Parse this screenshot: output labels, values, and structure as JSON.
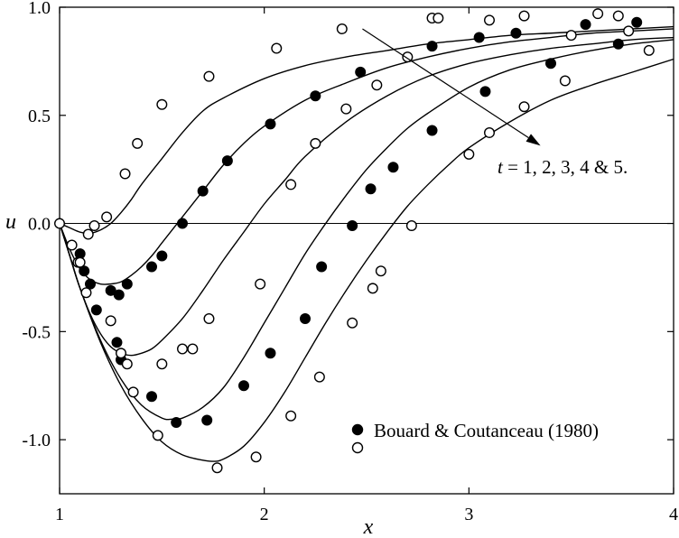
{
  "chart_data": {
    "type": "line",
    "xlabel": "x",
    "ylabel": "u",
    "xlim": [
      1,
      4
    ],
    "ylim": [
      -1.25,
      1.0
    ],
    "xticks": [
      1,
      2,
      3,
      4
    ],
    "xtick_labels": [
      "1",
      "2",
      "3",
      "4"
    ],
    "yticks": [
      1.0,
      0.5,
      0.0,
      -0.5,
      -1.0
    ],
    "ytick_labels": [
      "1.0",
      "0.5",
      "0.0",
      "-0.5",
      "-1.0"
    ],
    "grid": false,
    "zero_line": true,
    "annotation": {
      "t_symbol": "t",
      "rest": " = 1, 2, 3, 4 & 5.",
      "arrow_from": [
        2.48,
        0.9
      ],
      "arrow_to": [
        3.35,
        0.36
      ]
    },
    "legend": {
      "placement": "bottom-right",
      "entries": [
        {
          "marker": "filled-circle",
          "label": "Bouard & Coutanceau (1980)"
        },
        {
          "marker": "open-circle",
          "label": ""
        }
      ]
    },
    "curves": [
      {
        "t": 1,
        "x": [
          1.0,
          1.05,
          1.1,
          1.15,
          1.2,
          1.25,
          1.3,
          1.35,
          1.4,
          1.5,
          1.6,
          1.7,
          1.8,
          2.0,
          2.2,
          2.4,
          2.6,
          2.8,
          3.0,
          3.2,
          3.4,
          3.6,
          3.8,
          4.0
        ],
        "y": [
          0.0,
          -0.02,
          -0.04,
          -0.045,
          -0.03,
          0.0,
          0.05,
          0.11,
          0.18,
          0.3,
          0.42,
          0.52,
          0.58,
          0.67,
          0.73,
          0.77,
          0.8,
          0.83,
          0.85,
          0.87,
          0.88,
          0.89,
          0.9,
          0.91
        ]
      },
      {
        "t": 2,
        "x": [
          1.0,
          1.05,
          1.1,
          1.15,
          1.2,
          1.25,
          1.3,
          1.35,
          1.4,
          1.45,
          1.5,
          1.55,
          1.6,
          1.7,
          1.8,
          1.9,
          2.0,
          2.2,
          2.4,
          2.6,
          2.8,
          3.0,
          3.2,
          3.4,
          3.6,
          3.8,
          4.0
        ],
        "y": [
          0.0,
          -0.12,
          -0.21,
          -0.26,
          -0.28,
          -0.28,
          -0.27,
          -0.24,
          -0.2,
          -0.15,
          -0.09,
          -0.03,
          0.03,
          0.15,
          0.27,
          0.37,
          0.45,
          0.57,
          0.65,
          0.72,
          0.77,
          0.81,
          0.84,
          0.86,
          0.88,
          0.89,
          0.9
        ]
      },
      {
        "t": 3,
        "x": [
          1.0,
          1.05,
          1.1,
          1.15,
          1.2,
          1.25,
          1.3,
          1.35,
          1.4,
          1.45,
          1.5,
          1.6,
          1.7,
          1.8,
          1.9,
          2.0,
          2.1,
          2.2,
          2.4,
          2.6,
          2.8,
          3.0,
          3.2,
          3.4,
          3.6,
          3.8,
          4.0
        ],
        "y": [
          0.0,
          -0.15,
          -0.3,
          -0.42,
          -0.51,
          -0.57,
          -0.6,
          -0.61,
          -0.6,
          -0.58,
          -0.54,
          -0.44,
          -0.31,
          -0.17,
          -0.04,
          0.09,
          0.2,
          0.31,
          0.47,
          0.59,
          0.68,
          0.74,
          0.78,
          0.81,
          0.83,
          0.85,
          0.86
        ]
      },
      {
        "t": 4,
        "x": [
          1.0,
          1.05,
          1.1,
          1.2,
          1.3,
          1.4,
          1.5,
          1.55,
          1.6,
          1.7,
          1.8,
          1.9,
          2.0,
          2.1,
          2.2,
          2.3,
          2.4,
          2.5,
          2.6,
          2.7,
          2.8,
          3.0,
          3.2,
          3.4,
          3.6,
          3.8,
          4.0
        ],
        "y": [
          0.0,
          -0.15,
          -0.3,
          -0.54,
          -0.72,
          -0.84,
          -0.9,
          -0.905,
          -0.9,
          -0.85,
          -0.76,
          -0.62,
          -0.46,
          -0.3,
          -0.14,
          0.0,
          0.13,
          0.25,
          0.35,
          0.44,
          0.51,
          0.63,
          0.71,
          0.76,
          0.8,
          0.83,
          0.85
        ]
      },
      {
        "t": 5,
        "x": [
          1.0,
          1.05,
          1.1,
          1.2,
          1.3,
          1.4,
          1.5,
          1.6,
          1.7,
          1.75,
          1.8,
          1.9,
          2.0,
          2.1,
          2.2,
          2.3,
          2.4,
          2.5,
          2.6,
          2.7,
          2.8,
          2.9,
          3.0,
          3.2,
          3.4,
          3.6,
          3.8,
          4.0
        ],
        "y": [
          0.0,
          -0.15,
          -0.3,
          -0.55,
          -0.75,
          -0.9,
          -1.01,
          -1.07,
          -1.095,
          -1.1,
          -1.09,
          -1.03,
          -0.92,
          -0.78,
          -0.62,
          -0.46,
          -0.31,
          -0.17,
          -0.04,
          0.08,
          0.18,
          0.27,
          0.35,
          0.47,
          0.57,
          0.64,
          0.7,
          0.76
        ]
      }
    ],
    "series": [
      {
        "marker": "filled-circle",
        "x": [
          1.1,
          1.12,
          1.15,
          1.18,
          1.25,
          1.29,
          1.33,
          1.45,
          1.5,
          1.6,
          1.7,
          1.82,
          2.03,
          2.25,
          2.47,
          2.82,
          3.05,
          3.23,
          3.4,
          3.57,
          3.73,
          3.82,
          1.28,
          1.3,
          1.45,
          1.57,
          1.72,
          1.9,
          2.03,
          2.2,
          2.28,
          2.43,
          2.52,
          2.63,
          2.82,
          3.08
        ],
        "y": [
          -0.14,
          -0.22,
          -0.28,
          -0.4,
          -0.31,
          -0.33,
          -0.28,
          -0.2,
          -0.15,
          0.0,
          0.15,
          0.29,
          0.46,
          0.59,
          0.7,
          0.82,
          0.86,
          0.88,
          0.74,
          0.92,
          0.83,
          0.93,
          -0.55,
          -0.63,
          -0.8,
          -0.92,
          -0.91,
          -0.75,
          -0.6,
          -0.44,
          -0.2,
          -0.01,
          0.16,
          0.26,
          0.43,
          0.61
        ]
      },
      {
        "marker": "open-circle",
        "x": [
          1.0,
          1.06,
          1.09,
          1.14,
          1.17,
          1.23,
          1.32,
          1.38,
          1.5,
          1.73,
          2.06,
          2.38,
          2.82,
          3.1,
          3.27,
          3.5,
          3.63,
          3.73,
          3.78,
          3.88,
          1.1,
          1.13,
          1.3,
          1.36,
          1.48,
          1.6,
          1.73,
          1.98,
          2.13,
          2.25,
          2.4,
          2.55,
          2.7,
          2.85,
          3.0,
          3.1,
          3.27,
          3.47,
          1.25,
          1.33,
          1.5,
          1.65,
          1.77,
          1.96,
          2.13,
          2.27,
          2.43,
          2.53,
          2.57,
          2.72
        ],
        "y": [
          0.0,
          -0.1,
          -0.18,
          -0.05,
          -0.01,
          0.03,
          0.23,
          0.37,
          0.55,
          0.68,
          0.81,
          0.9,
          0.95,
          0.94,
          0.96,
          0.87,
          0.97,
          0.96,
          0.89,
          0.8,
          -0.18,
          -0.32,
          -0.6,
          -0.78,
          -0.98,
          -0.58,
          -0.44,
          -0.28,
          0.18,
          0.37,
          0.53,
          0.64,
          0.77,
          0.95,
          0.32,
          0.42,
          0.54,
          0.66,
          -0.45,
          -0.65,
          -0.65,
          -0.58,
          -1.13,
          -1.08,
          -0.89,
          -0.71,
          -0.46,
          -0.3,
          -0.22,
          -0.01
        ]
      }
    ]
  }
}
